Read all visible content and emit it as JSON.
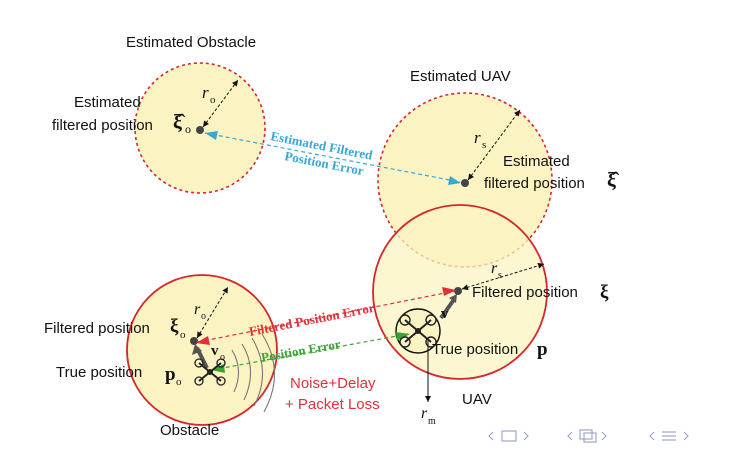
{
  "labels": {
    "estimated_obstacle": "Estimated Obstacle",
    "estimated_uav": "Estimated UAV",
    "est_filtered_pos_obstacle_line1": "Estimated",
    "est_filtered_pos_obstacle_line2": "filtered position",
    "xi_hat_o": "ξ̂",
    "sub_o": "o",
    "est_filtered_pos_uav_line1": "Estimated",
    "est_filtered_pos_uav_line2": "filtered position",
    "xi_hat": "ξ̂",
    "r": "r",
    "sub_s": "s",
    "sub_m": "m",
    "est_filtered_error_line1": "Estimated Filtered",
    "est_filtered_error_line2": "Position Error",
    "filtered_position_uav": "Filtered position",
    "xi": "ξ",
    "filtered_position_obstacle": "Filtered position",
    "xi_o": "ξ",
    "filtered_position_error": "Filtered Position Error",
    "position_error": "Position Error",
    "true_position_obstacle": "True position",
    "p_o": "p",
    "true_position_uav": "True position",
    "p": "p",
    "v": "v",
    "noise_line1": "Noise+Delay",
    "noise_line2": "+ Packet Loss",
    "uav": "UAV",
    "obstacle": "Obstacle"
  },
  "colors": {
    "disk_fill": "#fbf3c2",
    "circle_red": "#d7262b",
    "estimate_error": "#3aa7d5",
    "filtered_error": "#e0303a",
    "position_error": "#3aa535",
    "noise_text": "#e0303a"
  }
}
